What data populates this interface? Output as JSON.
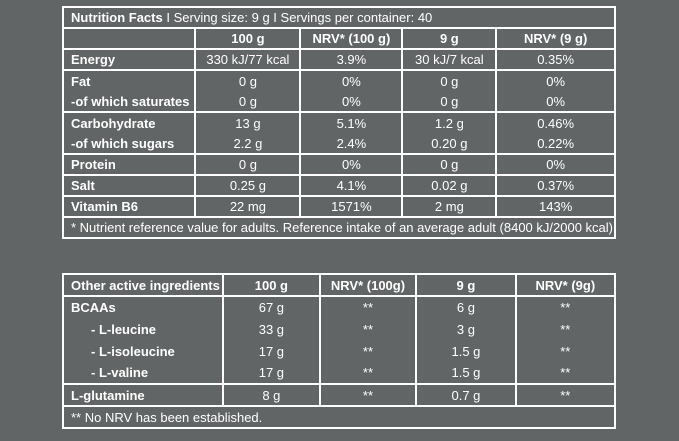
{
  "colors": {
    "background": "#626566",
    "grid_line": "#ffffff",
    "text": "#ffffff"
  },
  "nutrition_table": {
    "title_bold": "Nutrition Facts",
    "title_rest": "I Serving size: 9 g I Servings per container: 40",
    "columns": [
      "",
      "100 g",
      "NRV* (100 g)",
      "9 g",
      "NRV* (9 g)"
    ],
    "rows": [
      {
        "label": "Energy",
        "values": [
          "330 kJ/77 kcal",
          "3.9%",
          "30 kJ/7 kcal",
          "0.35%"
        ]
      },
      {
        "label": "Fat",
        "values": [
          "0 g",
          "0%",
          "0 g",
          "0%"
        ]
      },
      {
        "label": "-of which saturates",
        "values": [
          "0 g",
          "0%",
          "0 g",
          "0%"
        ]
      },
      {
        "label": "Carbohydrate",
        "values": [
          "13 g",
          "5.1%",
          "1.2 g",
          "0.46%"
        ]
      },
      {
        "label": "-of which sugars",
        "values": [
          "2.2 g",
          "2.4%",
          "0.20 g",
          "0.22%"
        ]
      },
      {
        "label": "Protein",
        "values": [
          "0 g",
          "0%",
          "0 g",
          "0%"
        ]
      },
      {
        "label": "Salt",
        "values": [
          "0.25 g",
          "4.1%",
          "0.02 g",
          "0.37%"
        ]
      },
      {
        "label": "Vitamin B6",
        "values": [
          "22 mg",
          "1571%",
          "2 mg",
          "143%"
        ]
      }
    ],
    "footnote": "* Nutrient reference value for adults. Reference intake of an average adult (8400 kJ/2000 kcal)."
  },
  "ingredients_table": {
    "columns": [
      "Other active ingredients",
      "100 g",
      "NRV* (100g)",
      "9 g",
      "NRV* (9g)"
    ],
    "rows": [
      {
        "label": "BCAAs",
        "values": [
          "67 g",
          "**",
          "6 g",
          "**"
        ]
      },
      {
        "label": "- L-leucine",
        "values": [
          "33 g",
          "**",
          "3 g",
          "**"
        ]
      },
      {
        "label": "- L-isoleucine",
        "values": [
          "17 g",
          "**",
          "1.5 g",
          "**"
        ]
      },
      {
        "label": "- L-valine",
        "values": [
          "17 g",
          "**",
          "1.5 g",
          "**"
        ]
      },
      {
        "label": "L-glutamine",
        "values": [
          "8 g",
          "**",
          "0.7 g",
          "**"
        ]
      }
    ],
    "footnote": "** No NRV has been established."
  }
}
